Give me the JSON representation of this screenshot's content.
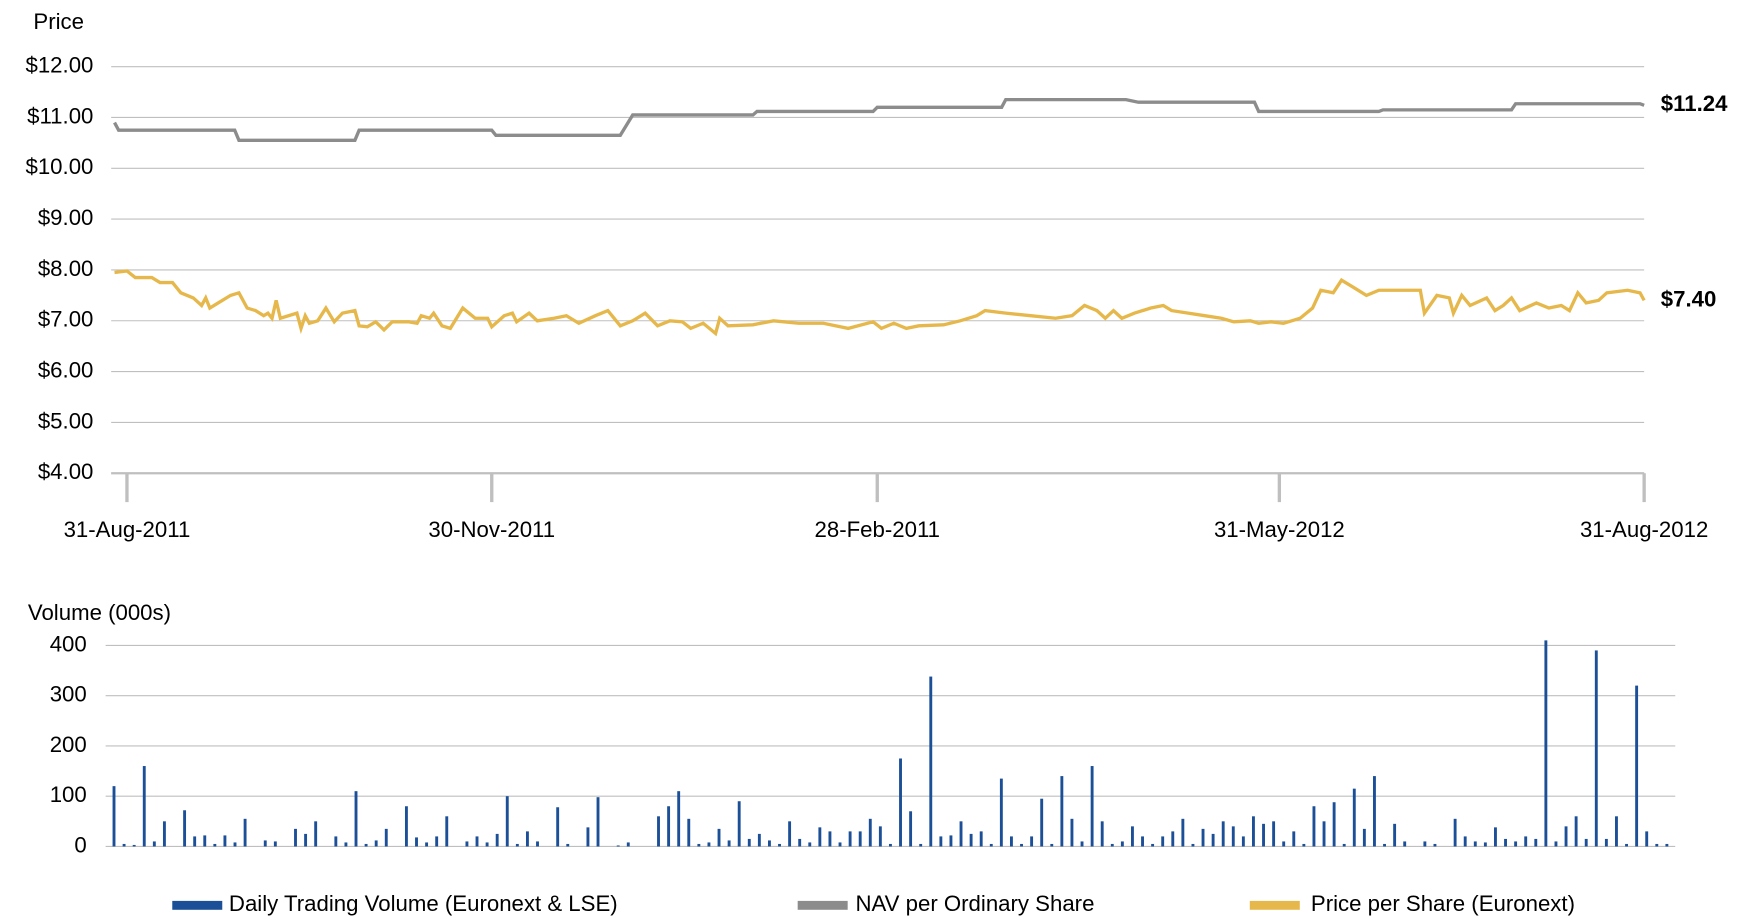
{
  "chart_data": [
    {
      "type": "line",
      "y_label": "Price",
      "xlim": [
        -3,
        366
      ],
      "xticks": [
        {
          "value": 0,
          "label": "31-Aug-2011"
        },
        {
          "value": 88,
          "label": "30-Nov-2011"
        },
        {
          "value": 181,
          "label": "28-Feb-2011"
        },
        {
          "value": 278,
          "label": "31-May-2012"
        },
        {
          "value": 366,
          "label": "31-Aug-2012"
        }
      ],
      "ylim": [
        4,
        12
      ],
      "yticks": [
        {
          "value": 4,
          "label": "$4.00"
        },
        {
          "value": 5,
          "label": "$5.00"
        },
        {
          "value": 6,
          "label": "$6.00"
        },
        {
          "value": 7,
          "label": "$7.00"
        },
        {
          "value": 8,
          "label": "$8.00"
        },
        {
          "value": 9,
          "label": "$9.00"
        },
        {
          "value": 10,
          "label": "$10.00"
        },
        {
          "value": 11,
          "label": "$11.00"
        },
        {
          "value": 12,
          "label": "$12.00"
        }
      ],
      "grid": true,
      "series": [
        {
          "name": "NAV per Ordinary Share",
          "color": "#8c8c8c",
          "end_label": "$11.24",
          "x": [
            -3,
            -2,
            26,
            27,
            55,
            56,
            88,
            89,
            119,
            122,
            151,
            152,
            180,
            181,
            211,
            212,
            241,
            244,
            272,
            273,
            302,
            303,
            334,
            335,
            365,
            366
          ],
          "values": [
            10.9,
            10.75,
            10.75,
            10.55,
            10.55,
            10.75,
            10.75,
            10.65,
            10.65,
            11.05,
            11.05,
            11.12,
            11.12,
            11.2,
            11.2,
            11.35,
            11.35,
            11.3,
            11.3,
            11.12,
            11.12,
            11.15,
            11.15,
            11.27,
            11.27,
            11.24
          ]
        },
        {
          "name": "Price per Share (Euronext)",
          "color": "#e6b84b",
          "end_label": "$7.40",
          "x": [
            -3,
            0,
            2,
            6,
            8,
            11,
            13,
            16,
            18,
            19,
            20,
            22,
            25,
            27,
            29,
            31,
            33,
            34,
            35,
            36,
            37,
            41,
            42,
            43,
            44,
            46,
            48,
            50,
            52,
            55,
            56,
            58,
            60,
            62,
            64,
            68,
            70,
            71,
            73,
            74,
            76,
            78,
            81,
            84,
            87,
            88,
            91,
            93,
            94,
            97,
            99,
            103,
            106,
            109,
            113,
            116,
            119,
            122,
            125,
            128,
            131,
            134,
            136,
            139,
            142,
            143,
            145,
            151,
            156,
            162,
            168,
            174,
            180,
            182,
            185,
            188,
            191,
            197,
            201,
            205,
            207,
            212,
            218,
            224,
            228,
            231,
            234,
            236,
            238,
            240,
            243,
            247,
            250,
            252,
            256,
            260,
            264,
            267,
            271,
            273,
            276,
            279,
            281,
            283,
            286,
            288,
            291,
            293,
            296,
            299,
            302,
            312,
            313,
            316,
            319,
            320,
            322,
            324,
            328,
            330,
            332,
            334,
            336,
            340,
            343,
            346,
            348,
            350,
            352,
            355,
            357,
            362,
            365,
            366
          ],
          "values": [
            7.95,
            7.98,
            7.85,
            7.85,
            7.75,
            7.75,
            7.55,
            7.45,
            7.3,
            7.45,
            7.25,
            7.35,
            7.5,
            7.55,
            7.25,
            7.2,
            7.1,
            7.15,
            7.05,
            7.4,
            7.05,
            7.15,
            6.85,
            7.1,
            6.95,
            7.0,
            7.25,
            6.98,
            7.15,
            7.2,
            6.9,
            6.88,
            6.98,
            6.82,
            6.98,
            6.98,
            6.95,
            7.1,
            7.05,
            7.15,
            6.9,
            6.85,
            7.25,
            7.05,
            7.05,
            6.88,
            7.1,
            7.15,
            6.98,
            7.15,
            7.0,
            7.05,
            7.1,
            6.95,
            7.1,
            7.2,
            6.9,
            7.0,
            7.15,
            6.9,
            7.0,
            6.98,
            6.85,
            6.95,
            6.75,
            7.05,
            6.9,
            6.92,
            7.0,
            6.95,
            6.95,
            6.85,
            6.98,
            6.85,
            6.95,
            6.85,
            6.9,
            6.92,
            7.0,
            7.1,
            7.2,
            7.15,
            7.1,
            7.05,
            7.1,
            7.3,
            7.2,
            7.05,
            7.2,
            7.05,
            7.15,
            7.25,
            7.3,
            7.2,
            7.15,
            7.1,
            7.05,
            6.98,
            7.0,
            6.95,
            6.98,
            6.95,
            7.0,
            7.05,
            7.25,
            7.6,
            7.55,
            7.8,
            7.65,
            7.5,
            7.6,
            7.6,
            7.15,
            7.5,
            7.45,
            7.15,
            7.5,
            7.3,
            7.45,
            7.2,
            7.3,
            7.45,
            7.2,
            7.35,
            7.25,
            7.3,
            7.2,
            7.55,
            7.35,
            7.4,
            7.55,
            7.6,
            7.55,
            7.4
          ]
        }
      ]
    },
    {
      "type": "bar",
      "y_label": "Volume (000s)",
      "ylim": [
        0,
        400
      ],
      "yticks": [
        0,
        100,
        200,
        300,
        400
      ],
      "grid": true,
      "series": [
        {
          "name": "Daily Trading Volume (Euronext & LSE)",
          "color": "#1b4f97",
          "values": [
            120,
            5,
            3,
            160,
            10,
            50,
            0,
            72,
            20,
            22,
            5,
            22,
            8,
            55,
            0,
            12,
            10,
            0,
            35,
            25,
            50,
            0,
            20,
            8,
            110,
            5,
            12,
            35,
            0,
            80,
            18,
            8,
            20,
            60,
            0,
            10,
            20,
            8,
            25,
            100,
            5,
            30,
            10,
            0,
            78,
            5,
            0,
            38,
            98,
            0,
            2,
            8,
            0,
            0,
            60,
            80,
            110,
            55,
            5,
            8,
            35,
            12,
            90,
            15,
            25,
            12,
            5,
            50,
            15,
            8,
            38,
            30,
            8,
            30,
            30,
            55,
            40,
            5,
            175,
            70,
            5,
            338,
            20,
            22,
            50,
            25,
            30,
            5,
            135,
            20,
            5,
            20,
            95,
            5,
            140,
            55,
            10,
            160,
            50,
            5,
            10,
            40,
            20,
            5,
            20,
            30,
            55,
            5,
            35,
            25,
            50,
            40,
            20,
            60,
            45,
            50,
            10,
            30,
            5,
            80,
            50,
            88,
            5,
            115,
            35,
            140,
            5,
            45,
            10,
            0,
            10,
            5,
            0,
            55,
            20,
            10,
            8,
            38,
            15,
            10,
            20,
            15,
            410,
            10,
            40,
            60,
            15,
            390,
            15,
            60,
            5,
            320,
            30,
            5,
            5
          ]
        }
      ]
    }
  ]
}
